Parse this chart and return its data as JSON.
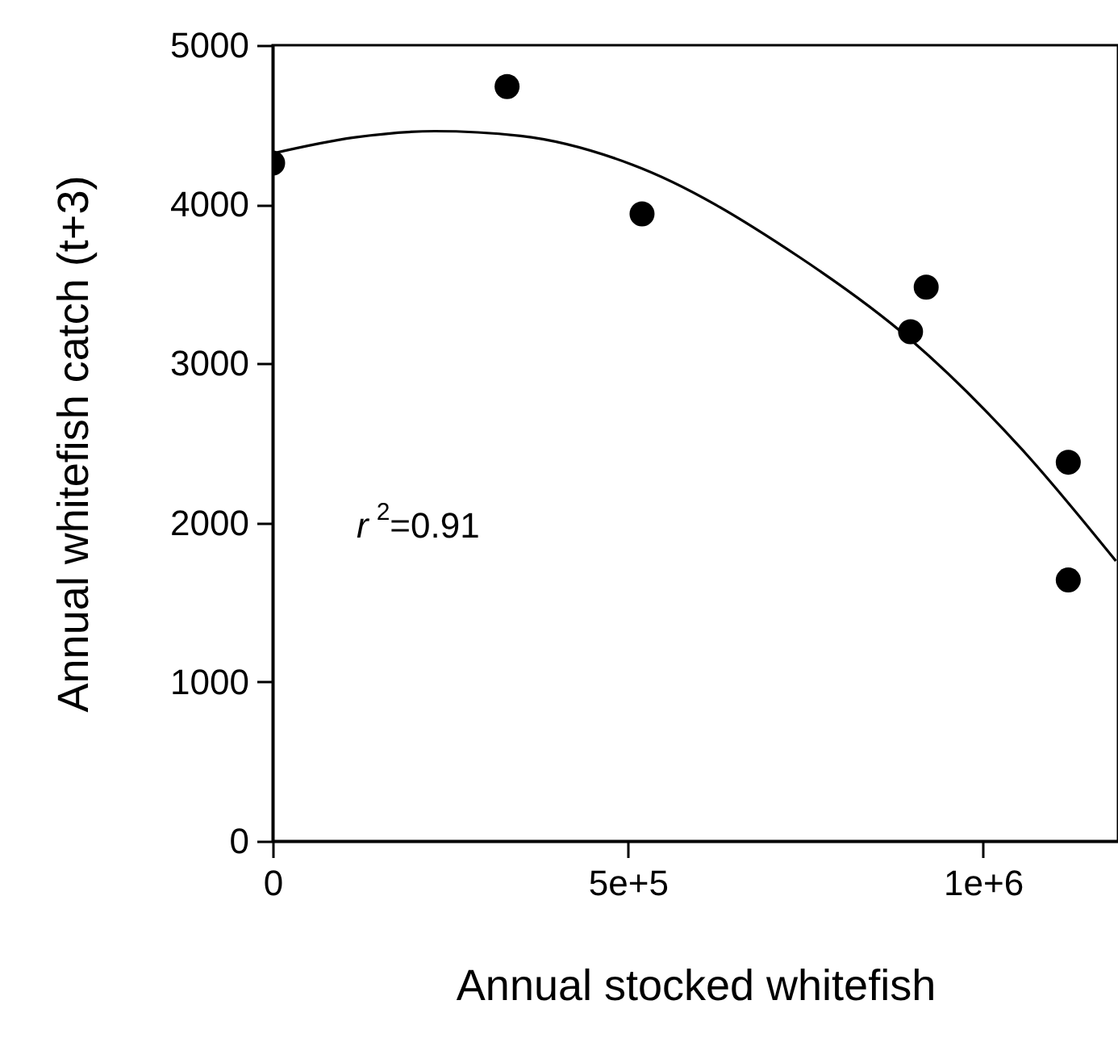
{
  "chart_data": {
    "type": "scatter",
    "xlabel": "Annual stocked whitefish",
    "ylabel": "Annual whitefish catch (t+3)",
    "xlim": [
      0,
      1190000
    ],
    "ylim": [
      0,
      5000
    ],
    "xticks": [
      0,
      {
        "value": 500000,
        "label": "5e+5"
      },
      {
        "value": 1000000,
        "label": "1e+6"
      }
    ],
    "yticks": [
      0,
      1000,
      2000,
      3000,
      4000,
      5000
    ],
    "grid": false,
    "marker": "circle",
    "series": [
      {
        "color": "#000000",
        "x": [
          0,
          330000,
          520000,
          920000,
          898000,
          1120000,
          1120000
        ],
        "values": [
          4260,
          4740,
          3940,
          3480,
          3200,
          2380,
          1640
        ]
      },
      {
        "type": "line",
        "color": "#000000",
        "marker": "none",
        "line_style": "solid",
        "x": [
          0,
          114000,
          228000,
          349000,
          506000,
          741000,
          898000,
          1055000,
          1187000
        ],
        "values": [
          4320,
          4420,
          4460,
          4430,
          4250,
          3670,
          3150,
          2460,
          1760
        ]
      }
    ],
    "annotations": [
      "r$^{2}$=0.91"
    ]
  }
}
